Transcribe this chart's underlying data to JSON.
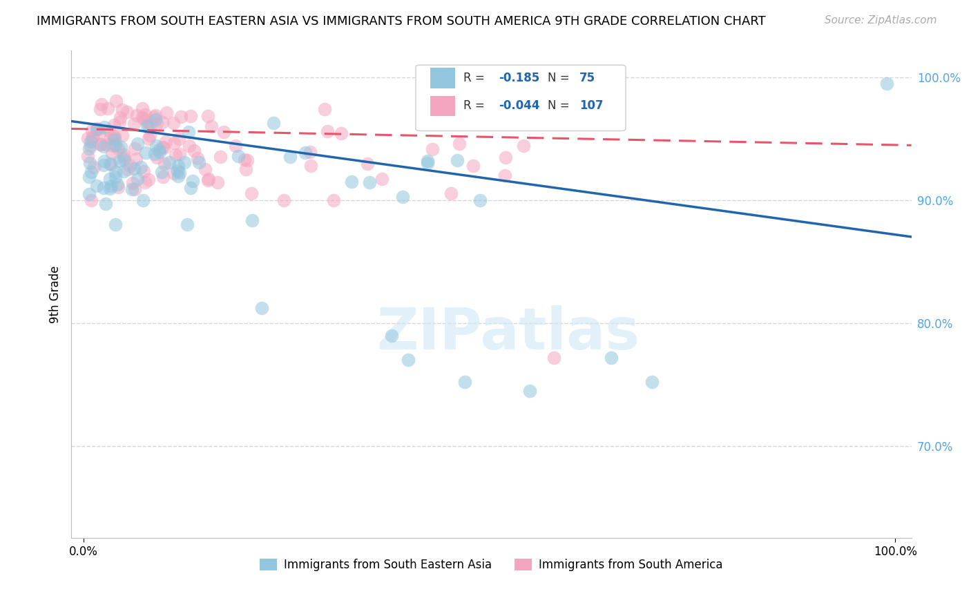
{
  "title": "IMMIGRANTS FROM SOUTH EASTERN ASIA VS IMMIGRANTS FROM SOUTH AMERICA 9TH GRADE CORRELATION CHART",
  "source": "Source: ZipAtlas.com",
  "ylabel": "9th Grade",
  "legend_R_blue": "-0.185",
  "legend_N_blue": "75",
  "legend_R_pink": "-0.044",
  "legend_N_pink": "107",
  "legend_label_blue": "Immigrants from South Eastern Asia",
  "legend_label_pink": "Immigrants from South America",
  "blue_color": "#92c5de",
  "pink_color": "#f4a6c0",
  "blue_line_color": "#2166ac",
  "pink_line_color": "#e8556a",
  "grid_color": "#cccccc",
  "blue_line_x0": 0.0,
  "blue_line_y0": 0.963,
  "blue_line_x1": 1.0,
  "blue_line_y1": 0.872,
  "pink_line_x0": 0.0,
  "pink_line_y0": 0.958,
  "pink_line_x1": 1.0,
  "pink_line_y1": 0.945,
  "ylim_low": 0.625,
  "ylim_high": 1.022,
  "xlim_low": -0.015,
  "xlim_high": 1.02,
  "ytick_vals": [
    0.7,
    0.8,
    0.9,
    1.0
  ],
  "ytick_labels": [
    "70.0%",
    "80.0%",
    "90.0%",
    "100.0%"
  ],
  "xtick_vals": [
    0.0,
    1.0
  ],
  "xtick_labels": [
    "0.0%",
    "100.0%"
  ],
  "ytick_color": "#4da6e8",
  "scatter_alpha": 0.55,
  "scatter_size": 200,
  "watermark_color": "#d0e8f5",
  "watermark_text": "ZIPatlas",
  "title_fontsize": 13,
  "source_fontsize": 11,
  "tick_fontsize": 12,
  "legend_fontsize": 12
}
